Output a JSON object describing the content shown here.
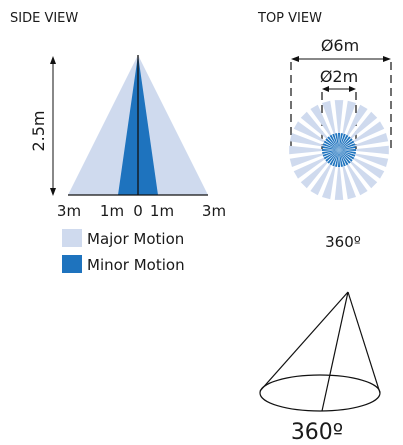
{
  "side_view": {
    "title": "SIDE VIEW",
    "height_label": "2.5m",
    "ticks": [
      "3m",
      "1m",
      "0",
      "1m",
      "3m"
    ],
    "colors": {
      "major": "#cfdaee",
      "minor": "#1e73be"
    }
  },
  "legend": [
    {
      "label": "Major Motion",
      "color": "#cfdaee"
    },
    {
      "label": "Minor Motion",
      "color": "#1e73be"
    }
  ],
  "top_view": {
    "title": "TOP VIEW",
    "outer_diameter_label": "Ø6m",
    "inner_diameter_label": "Ø2m",
    "angle_label": "360º",
    "colors": {
      "outer": "#cfdaee",
      "inner": "#1e73be"
    }
  },
  "cone": {
    "angle_label": "360º"
  }
}
